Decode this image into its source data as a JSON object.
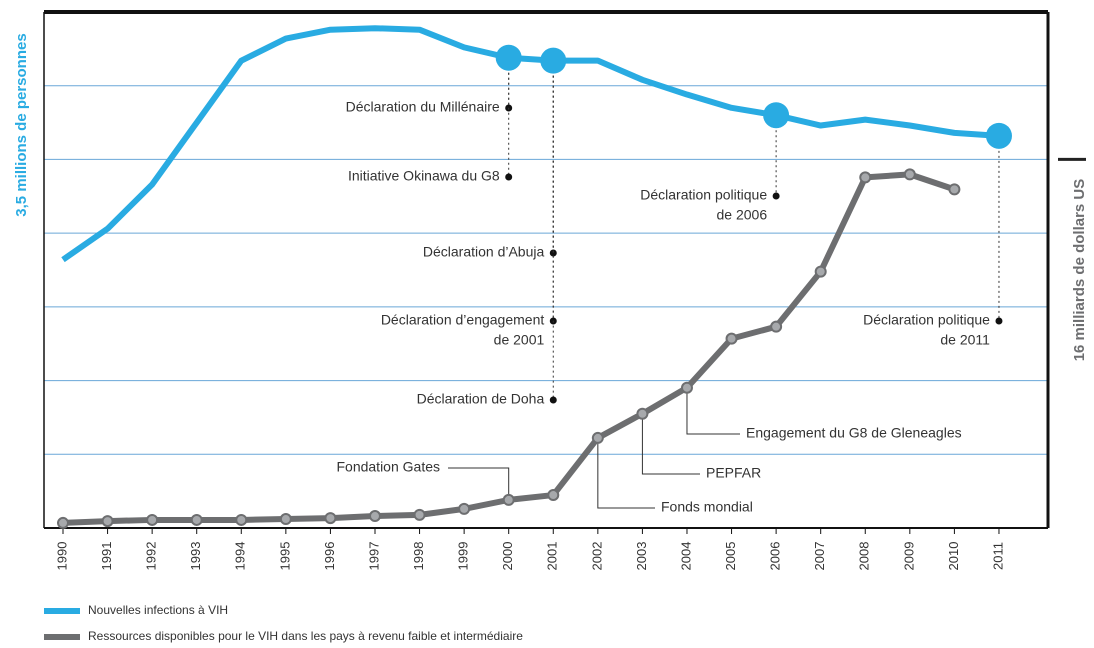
{
  "chart_data": {
    "type": "line",
    "ylabel": "3,5 millions de personnes",
    "y2label": "16 milliards de dollars US",
    "categories": [
      "1990",
      "1991",
      "1992",
      "1993",
      "1994",
      "1995",
      "1996",
      "1997",
      "1998",
      "1999",
      "2000",
      "2001",
      "2002",
      "2003",
      "2004",
      "2005",
      "2006",
      "2007",
      "2008",
      "2009",
      "2010",
      "2011"
    ],
    "ylim": [
      0,
      3.5
    ],
    "yticks": [
      0.5,
      1,
      1.5,
      2,
      2.5,
      3
    ],
    "grid": true,
    "y2lim": [
      0,
      22.4
    ],
    "y2ticks": [
      16
    ],
    "series": [
      {
        "name": "Nouvelles infections à VIH",
        "color": "#29abe2",
        "markers_at": [
          "2000",
          "2001",
          "2006",
          "2011"
        ],
        "values": [
          1.82,
          2.03,
          2.33,
          2.75,
          3.17,
          3.32,
          3.38,
          3.39,
          3.38,
          3.26,
          3.19,
          3.17,
          3.17,
          3.04,
          2.94,
          2.85,
          2.8,
          2.73,
          2.77,
          2.73,
          2.68,
          2.66
        ]
      },
      {
        "name": "Ressources disponibles pour le VIH dans les pays à revenu faible et intermédiaire",
        "color": "#6d6e70",
        "axis": "y2",
        "values": [
          0.22,
          0.3,
          0.35,
          0.35,
          0.35,
          0.39,
          0.43,
          0.52,
          0.57,
          0.83,
          1.22,
          1.43,
          3.91,
          4.96,
          6.09,
          8.22,
          8.74,
          11.13,
          15.22,
          15.35,
          14.7,
          null
        ]
      }
    ],
    "annotations": [
      {
        "text": [
          "Déclaration du Millénaire"
        ]
      },
      {
        "text": [
          "Initiative Okinawa du G8"
        ]
      },
      {
        "text": [
          "Déclaration d’Abuja"
        ]
      },
      {
        "text": [
          "Déclaration d’engagement",
          "de 2001"
        ]
      },
      {
        "text": [
          "Déclaration de Doha"
        ]
      },
      {
        "text": [
          "Déclaration politique",
          "de 2006"
        ]
      },
      {
        "text": [
          "Déclaration politique",
          "de 2011"
        ]
      },
      {
        "text": [
          "Fondation Gates"
        ]
      },
      {
        "text": [
          "Fonds mondial"
        ]
      },
      {
        "text": [
          "PEPFAR"
        ]
      },
      {
        "text": [
          "Engagement du G8 de Gleneagles"
        ]
      }
    ]
  }
}
